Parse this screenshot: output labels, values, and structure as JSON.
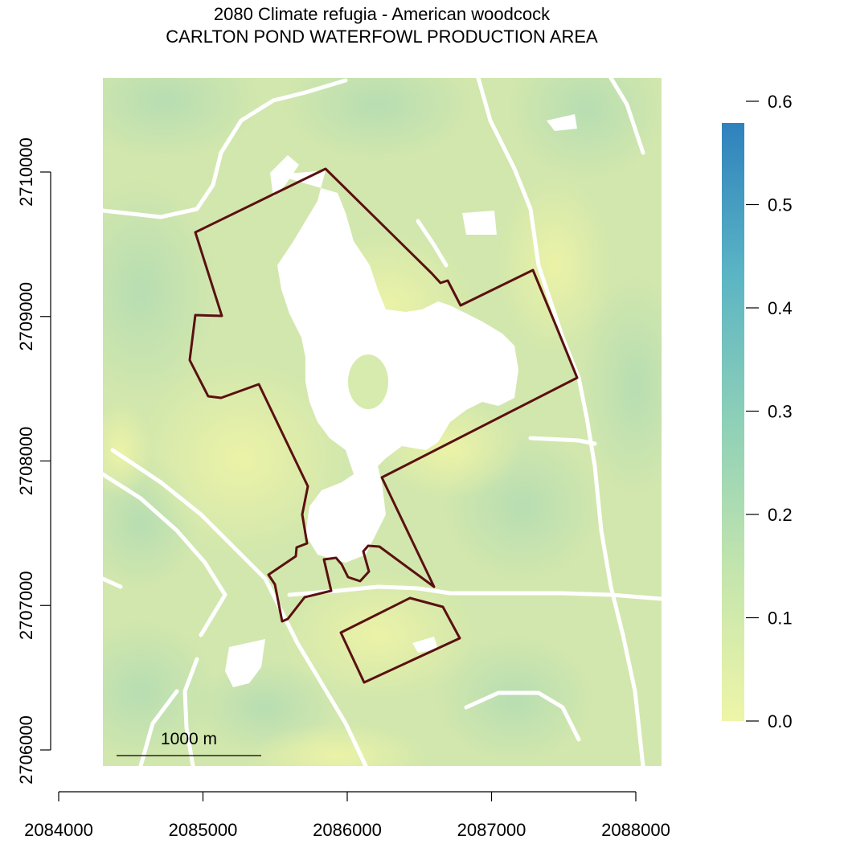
{
  "title": {
    "line1": "2080 Climate refugia - American woodcock",
    "line2": "CARLTON POND WATERFOWL PRODUCTION AREA"
  },
  "x_axis": {
    "ticks": [
      2084000,
      2085000,
      2086000,
      2087000,
      2088000
    ],
    "labels": [
      "2084000",
      "2085000",
      "2086000",
      "2087000",
      "2088000"
    ]
  },
  "y_axis": {
    "ticks": [
      2706000,
      2707000,
      2708000,
      2709000,
      2710000
    ],
    "labels": [
      "2706000",
      "2707000",
      "2708000",
      "2709000",
      "2710000"
    ]
  },
  "legend": {
    "labels": [
      "0.0",
      "0.1",
      "0.2",
      "0.3",
      "0.4",
      "0.5",
      "0.6"
    ],
    "values": [
      0.0,
      0.1,
      0.2,
      0.3,
      0.4,
      0.5,
      0.6
    ],
    "colors": [
      "#eef5a8",
      "#c4e5ad",
      "#8ed0b8",
      "#5ab4c4",
      "#2f81bd"
    ]
  },
  "scalebar": {
    "label": "1000 m"
  },
  "colors": {
    "boundary": "#5a1010",
    "map_base": "#d2e7ad",
    "map_light": "#e8f1a8",
    "map_green": "#b8e0b0",
    "roads": "#ffffff"
  }
}
